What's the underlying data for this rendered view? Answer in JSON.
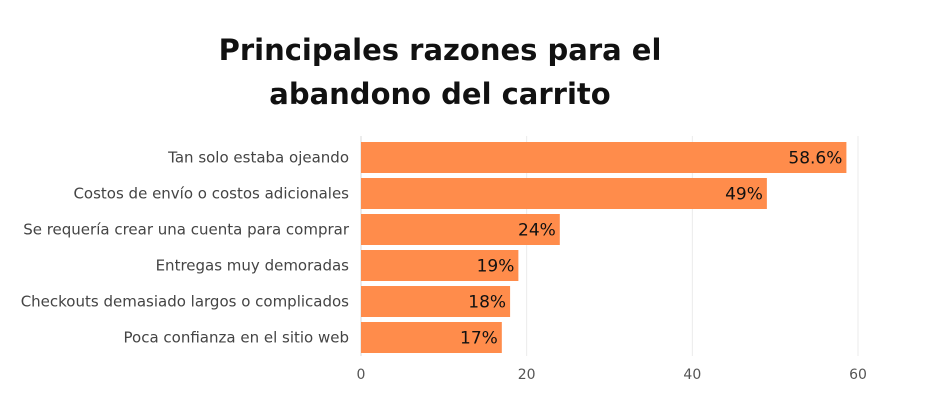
{
  "chart_data": {
    "type": "bar",
    "orientation": "horizontal",
    "title": "Principales razones para el abandono del carrito",
    "title_lines": [
      "Principales razones para el",
      "abandono del carrito"
    ],
    "categories": [
      "Tan solo estaba ojeando",
      "Costos de envío o costos adicionales",
      "Se requería crear una cuenta para comprar",
      "Entregas muy demoradas",
      "Checkouts demasiado largos o complicados",
      "Poca confianza en el sitio web"
    ],
    "values": [
      58.6,
      49,
      24,
      19,
      18,
      17
    ],
    "value_labels": [
      "58.6%",
      "49%",
      "24%",
      "19%",
      "18%",
      "17%"
    ],
    "xlim": [
      0,
      60
    ],
    "xticks": [
      0,
      20,
      40,
      60
    ],
    "xtick_labels": [
      "0",
      "20",
      "40",
      "60"
    ],
    "xlabel": "",
    "ylabel": "",
    "grid": "vertical",
    "legend": "none",
    "bar_color": "#FF8C4B",
    "grid_color": "#EBEBEB"
  }
}
